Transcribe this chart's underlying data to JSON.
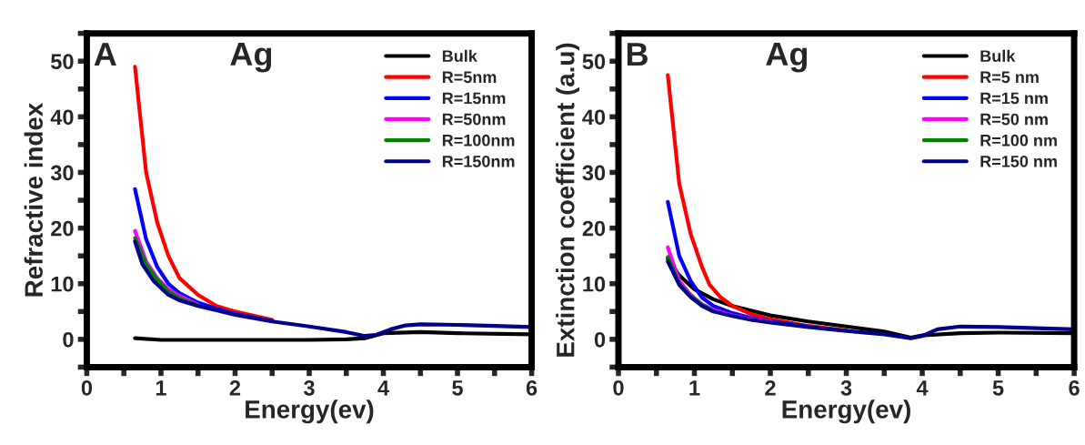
{
  "chart_data": [
    {
      "type": "line",
      "xlabel": "Energy(ev)",
      "ylabel": "Refractive index",
      "annotations": [
        "A",
        "Ag"
      ],
      "xlim": [
        0,
        6
      ],
      "ylim": [
        -5,
        55
      ],
      "xticks": [
        0,
        {
          "value": 0.5,
          "label": null
        },
        1,
        {
          "value": 1.5,
          "label": null
        },
        2,
        {
          "value": 2.5,
          "label": null
        },
        3,
        {
          "value": 3.5,
          "label": null
        },
        4,
        {
          "value": 4.5,
          "label": null
        },
        5,
        {
          "value": 5.5,
          "label": null
        },
        6
      ],
      "yticks": [
        {
          "value": -5,
          "label": null
        },
        0,
        {
          "value": 5,
          "label": null
        },
        10,
        {
          "value": 15,
          "label": null
        },
        20,
        {
          "value": 25,
          "label": null
        },
        30,
        {
          "value": 35,
          "label": null
        },
        40,
        {
          "value": 45,
          "label": null
        },
        50,
        {
          "value": 55,
          "label": null
        }
      ],
      "grid": false,
      "legend": "top right",
      "line_style": "solid",
      "marker": "none",
      "series": [
        {
          "name": "Bulk",
          "color": "#000000",
          "x": [
            0.65,
            1,
            2,
            3,
            3.5,
            3.75,
            4,
            4.5,
            5,
            6
          ],
          "values": [
            0.2,
            -0.1,
            -0.1,
            -0.1,
            0,
            0.2,
            1.1,
            1.3,
            1.1,
            0.9
          ]
        },
        {
          "name": "R=5nm",
          "color": "#ff0000",
          "x": [
            0.65,
            0.8,
            0.95,
            1.1,
            1.25,
            1.5,
            1.75,
            2,
            2.5
          ],
          "values": [
            49,
            30,
            21,
            15,
            11,
            8,
            6,
            5,
            3.5
          ]
        },
        {
          "name": "R=15nm",
          "color": "#0000ff",
          "x": [
            0.65,
            0.8,
            0.95,
            1.1,
            1.25,
            1.5,
            1.75,
            2,
            2.5
          ],
          "values": [
            27,
            18,
            13,
            10,
            8.3,
            6.6,
            5.5,
            4.6,
            3.3
          ]
        },
        {
          "name": "R=50nm",
          "color": "#ff00ff",
          "x": [
            0.65,
            0.8,
            0.95,
            1.1,
            1.25,
            1.5
          ],
          "values": [
            19.5,
            14,
            11,
            9,
            7.8,
            6.2
          ]
        },
        {
          "name": "R=100nm",
          "color": "#008000",
          "x": [
            0.65,
            0.8,
            0.95,
            1.1,
            1.25,
            1.5
          ],
          "values": [
            18.2,
            13.5,
            10.7,
            8.6,
            7.4,
            6.1
          ]
        },
        {
          "name": "R=150nm",
          "color": "#00008b",
          "x": [
            0.65,
            0.75,
            0.9,
            1.1,
            1.25,
            1.5,
            1.75,
            2,
            2.5,
            3,
            3.5,
            3.75,
            3.9,
            4.1,
            4.3,
            4.5,
            5,
            5.5,
            6
          ],
          "values": [
            17.6,
            13.5,
            10.5,
            8,
            7,
            6,
            5.2,
            4.4,
            3.2,
            2.3,
            1.3,
            0.6,
            0.8,
            1.8,
            2.5,
            2.7,
            2.6,
            2.4,
            2.2
          ]
        }
      ]
    },
    {
      "type": "line",
      "xlabel": "Energy(ev)",
      "ylabel": "Extinction coefficient (a.u)",
      "annotations": [
        "B",
        "Ag"
      ],
      "xlim": [
        0,
        6
      ],
      "ylim": [
        -5,
        55
      ],
      "xticks": [
        0,
        {
          "value": 0.5,
          "label": null
        },
        1,
        {
          "value": 1.5,
          "label": null
        },
        2,
        {
          "value": 2.5,
          "label": null
        },
        3,
        {
          "value": 3.5,
          "label": null
        },
        4,
        {
          "value": 4.5,
          "label": null
        },
        5,
        {
          "value": 5.5,
          "label": null
        },
        6
      ],
      "yticks": [
        {
          "value": -5,
          "label": null
        },
        0,
        {
          "value": 5,
          "label": null
        },
        10,
        {
          "value": 15,
          "label": null
        },
        20,
        {
          "value": 25,
          "label": null
        },
        30,
        {
          "value": 35,
          "label": null
        },
        40,
        {
          "value": 45,
          "label": null
        },
        50,
        {
          "value": 55,
          "label": null
        }
      ],
      "grid": false,
      "legend": "top right",
      "line_style": "solid",
      "marker": "none",
      "series": [
        {
          "name": "Bulk",
          "color": "#000000",
          "x": [
            0.65,
            0.8,
            1,
            1.25,
            1.5,
            2,
            2.5,
            3,
            3.5,
            3.85,
            4,
            4.5,
            5,
            6
          ],
          "values": [
            14.5,
            11.5,
            9,
            7.2,
            6,
            4.3,
            3.2,
            2.3,
            1.4,
            0.3,
            0.7,
            1.1,
            1.2,
            1.1
          ]
        },
        {
          "name": "R=5 nm",
          "color": "#ff0000",
          "x": [
            0.65,
            0.8,
            0.95,
            1.1,
            1.2,
            1.35,
            1.5,
            1.75,
            2,
            2.5,
            3
          ],
          "values": [
            47.5,
            28,
            19,
            13,
            9.8,
            7.5,
            6,
            4.5,
            3.6,
            2.4,
            1.6
          ]
        },
        {
          "name": "R=15 nm",
          "color": "#0000ff",
          "x": [
            0.65,
            0.8,
            0.95,
            1.1,
            1.25,
            1.5,
            1.75,
            2,
            2.5
          ],
          "values": [
            24.7,
            15,
            10.5,
            7.5,
            6,
            4.7,
            3.8,
            3.2,
            2.3
          ]
        },
        {
          "name": "R=50 nm",
          "color": "#ff00ff",
          "x": [
            0.65,
            0.8,
            0.95,
            1.1,
            1.25,
            1.5,
            1.75,
            2
          ],
          "values": [
            16.5,
            10.5,
            8,
            6.3,
            5.3,
            4.3,
            3.6,
            3.1
          ]
        },
        {
          "name": "R=100 nm",
          "color": "#008000",
          "x": [
            0.65,
            0.8,
            0.95,
            1.1,
            1.25
          ],
          "values": [
            14.8,
            10,
            7.8,
            6.2,
            5.1
          ]
        },
        {
          "name": "R=150 nm",
          "color": "#00008b",
          "x": [
            0.65,
            0.8,
            0.95,
            1.1,
            1.25,
            1.5,
            1.75,
            2,
            2.5,
            3,
            3.5,
            3.85,
            4,
            4.2,
            4.5,
            5,
            6
          ],
          "values": [
            14,
            9.8,
            7.6,
            6,
            5,
            4.2,
            3.5,
            3,
            2.2,
            1.5,
            0.9,
            0.2,
            0.6,
            1.8,
            2.3,
            2.2,
            1.8
          ]
        }
      ]
    }
  ]
}
